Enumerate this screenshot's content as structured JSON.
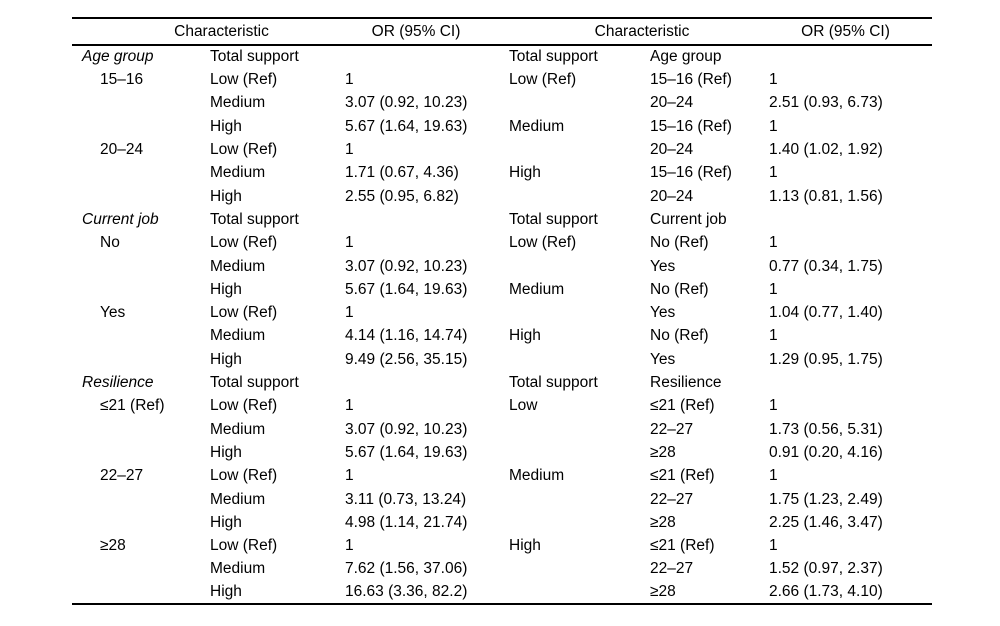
{
  "header": {
    "left_characteristic": "Characteristic",
    "left_or": "OR (95% CI)",
    "right_characteristic": "Characteristic",
    "right_or": "OR (95% CI)"
  },
  "rows": [
    {
      "left": [
        "Age group",
        "Total support",
        ""
      ],
      "left_group": true,
      "right": [
        "Total support",
        "Age group",
        ""
      ]
    },
    {
      "left": [
        "15–16",
        "Low (Ref)",
        "1"
      ],
      "left_indent": true,
      "right": [
        "Low (Ref)",
        "15–16 (Ref)",
        "1"
      ]
    },
    {
      "left": [
        "",
        "Medium",
        "3.07 (0.92, 10.23)"
      ],
      "right": [
        "",
        "20–24",
        "2.51 (0.93, 6.73)"
      ]
    },
    {
      "left": [
        "",
        "High",
        "5.67 (1.64, 19.63)"
      ],
      "right": [
        "Medium",
        "15–16 (Ref)",
        "1"
      ]
    },
    {
      "left": [
        "20–24",
        "Low (Ref)",
        "1"
      ],
      "left_indent": true,
      "right": [
        "",
        "20–24",
        "1.40 (1.02, 1.92)"
      ]
    },
    {
      "left": [
        "",
        "Medium",
        "1.71 (0.67, 4.36)"
      ],
      "right": [
        "High",
        "15–16 (Ref)",
        "1"
      ]
    },
    {
      "left": [
        "",
        "High",
        "2.55 (0.95, 6.82)"
      ],
      "right": [
        "",
        "20–24",
        "1.13 (0.81, 1.56)"
      ]
    },
    {
      "left": [
        "Current job",
        "Total support",
        ""
      ],
      "left_group": true,
      "right": [
        "Total support",
        "Current job",
        ""
      ]
    },
    {
      "left": [
        "No",
        "Low (Ref)",
        "1"
      ],
      "left_indent": true,
      "right": [
        "Low (Ref)",
        "No (Ref)",
        "1"
      ]
    },
    {
      "left": [
        "",
        "Medium",
        "3.07 (0.92, 10.23)"
      ],
      "right": [
        "",
        "Yes",
        "0.77 (0.34, 1.75)"
      ]
    },
    {
      "left": [
        "",
        "High",
        "5.67 (1.64, 19.63)"
      ],
      "right": [
        "Medium",
        "No (Ref)",
        "1"
      ]
    },
    {
      "left": [
        "Yes",
        "Low (Ref)",
        "1"
      ],
      "left_indent": true,
      "right": [
        "",
        "Yes",
        "1.04 (0.77, 1.40)"
      ]
    },
    {
      "left": [
        "",
        "Medium",
        "4.14 (1.16, 14.74)"
      ],
      "right": [
        "High",
        "No (Ref)",
        "1"
      ]
    },
    {
      "left": [
        "",
        "High",
        "9.49 (2.56, 35.15)"
      ],
      "right": [
        "",
        "Yes",
        "1.29 (0.95, 1.75)"
      ]
    },
    {
      "left": [
        "Resilience",
        "Total support",
        ""
      ],
      "left_group": true,
      "right": [
        "Total support",
        "Resilience",
        ""
      ]
    },
    {
      "left": [
        "≤21 (Ref)",
        "Low (Ref)",
        "1"
      ],
      "left_indent": true,
      "right": [
        "Low",
        "≤21 (Ref)",
        "1"
      ]
    },
    {
      "left": [
        "",
        "Medium",
        "3.07 (0.92, 10.23)"
      ],
      "right": [
        "",
        "22–27",
        "1.73 (0.56, 5.31)"
      ]
    },
    {
      "left": [
        "",
        "High",
        "5.67 (1.64, 19.63)"
      ],
      "right": [
        "",
        "≥28",
        "0.91 (0.20, 4.16)"
      ]
    },
    {
      "left": [
        "22–27",
        "Low (Ref)",
        "1"
      ],
      "left_indent": true,
      "right": [
        "Medium",
        "≤21 (Ref)",
        "1"
      ]
    },
    {
      "left": [
        "",
        "Medium",
        "3.11 (0.73, 13.24)"
      ],
      "right": [
        "",
        "22–27",
        "1.75 (1.23, 2.49)"
      ]
    },
    {
      "left": [
        "",
        "High",
        "4.98 (1.14, 21.74)"
      ],
      "right": [
        "",
        "≥28",
        "2.25 (1.46, 3.47)"
      ]
    },
    {
      "left": [
        "≥28",
        "Low (Ref)",
        "1"
      ],
      "left_indent": true,
      "right": [
        "High",
        "≤21 (Ref)",
        "1"
      ]
    },
    {
      "left": [
        "",
        "Medium",
        "7.62 (1.56, 37.06)"
      ],
      "right": [
        "",
        "22–27",
        "1.52 (0.97, 2.37)"
      ]
    },
    {
      "left": [
        "",
        "High",
        "16.63 (3.36, 82.2)"
      ],
      "right": [
        "",
        "≥28",
        "2.66 (1.73, 4.10)"
      ]
    }
  ]
}
